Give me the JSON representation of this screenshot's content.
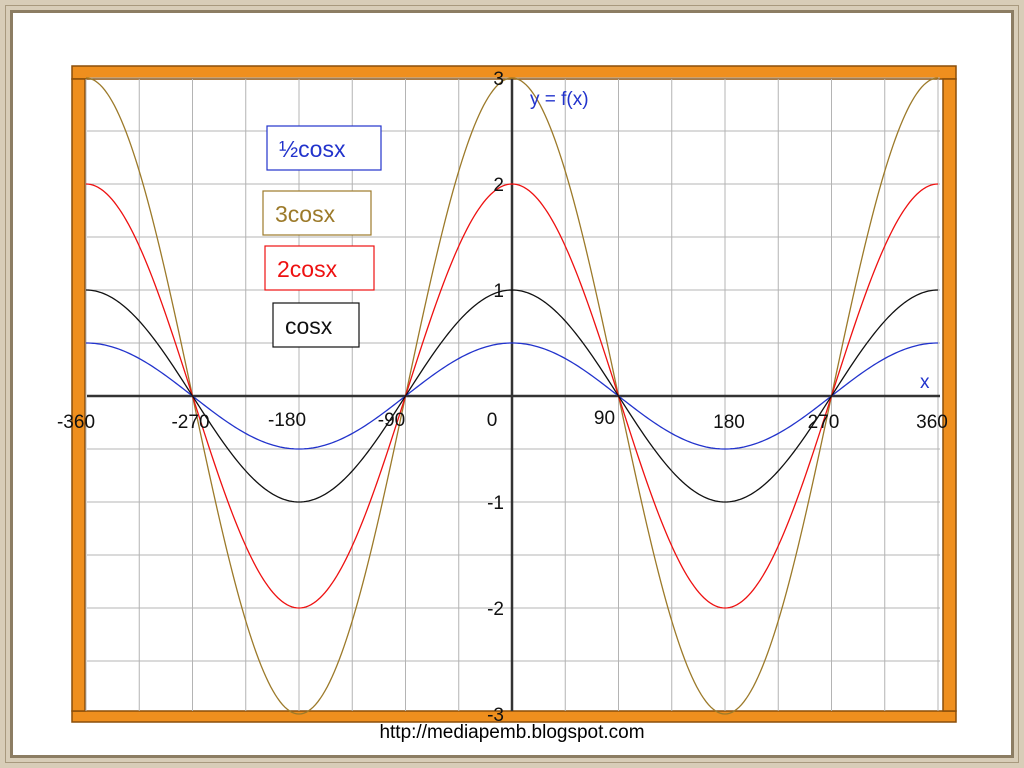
{
  "chart_data": {
    "type": "line",
    "title": "",
    "xlabel": "x",
    "ylabel": "y = f(x)",
    "xlim": [
      -360,
      360
    ],
    "ylim": [
      -3,
      3
    ],
    "grid": true,
    "x_ticks": [
      -360,
      -270,
      -180,
      -90,
      0,
      90,
      180,
      270,
      360
    ],
    "x_tick_labels": [
      "-360",
      "-270",
      "-180",
      "-90",
      "0",
      "90",
      "180",
      "270",
      "360"
    ],
    "y_ticks": [
      -3,
      -2,
      -1,
      1,
      2,
      3
    ],
    "y_tick_labels": [
      "-3",
      "-2",
      "-1",
      "1",
      "2",
      "3"
    ],
    "x": [
      -360,
      -270,
      -180,
      -90,
      0,
      90,
      180,
      270,
      360
    ],
    "series": [
      {
        "name": "½cosx",
        "amplitude": 0.5,
        "color": "#2233cc",
        "values": [
          0.5,
          0,
          -0.5,
          0,
          0.5,
          0,
          -0.5,
          0,
          0.5
        ]
      },
      {
        "name": "3cosx",
        "amplitude": 3,
        "color": "#9c7a2a",
        "values": [
          3,
          0,
          -3,
          0,
          3,
          0,
          -3,
          0,
          3
        ]
      },
      {
        "name": "2cosx",
        "amplitude": 2,
        "color": "#ee1111",
        "values": [
          2,
          0,
          -2,
          0,
          2,
          0,
          -2,
          0,
          2
        ]
      },
      {
        "name": "cosx",
        "amplitude": 1,
        "color": "#111111",
        "values": [
          1,
          0,
          -1,
          0,
          1,
          0,
          -1,
          0,
          1
        ]
      }
    ],
    "legend_placement": "top-left"
  },
  "footer": {
    "url": "http://mediapemb.blogspot.com"
  },
  "colors": {
    "border": "#ef8f1e",
    "grid": "#b4b4b4",
    "axis": "#333333",
    "ylabel": "#2233cc",
    "xlabel": "#2233cc"
  }
}
